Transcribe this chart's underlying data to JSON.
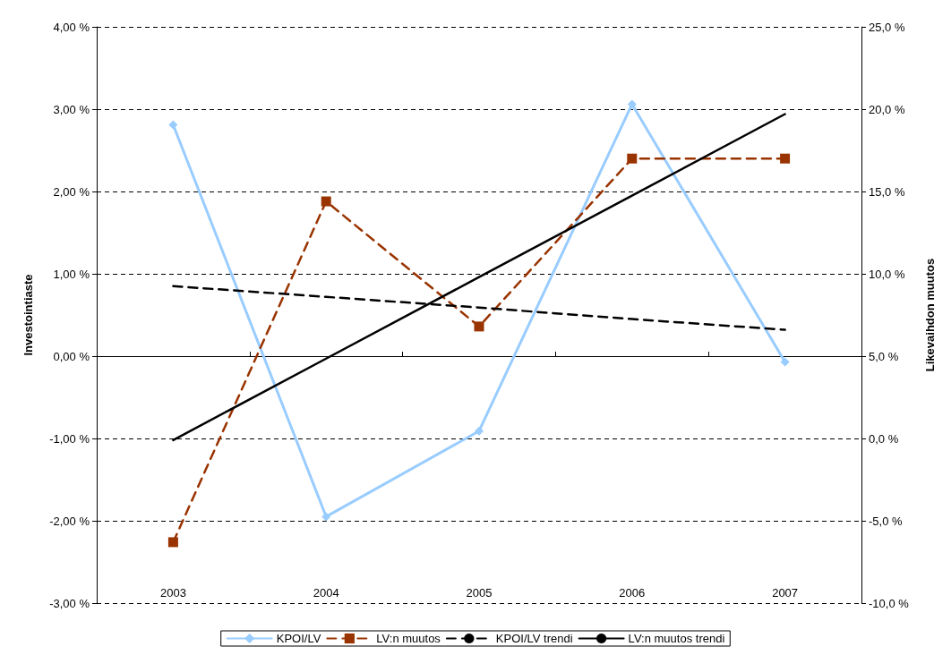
{
  "chart_data": {
    "type": "line",
    "ylabel": "Investointiaste",
    "y2label": "Likevaihdon muutos",
    "categories": [
      "2003",
      "2004",
      "2005",
      "2006",
      "2007"
    ],
    "series": [
      {
        "name": "KPOI/LV",
        "color": "#99ccff",
        "values": [
          2.81,
          -1.95,
          -0.91,
          3.06,
          -0.07
        ],
        "marker": "diamond",
        "line_style": "solid"
      },
      {
        "name": "LV:n muutos",
        "color": "#993300",
        "values": [
          -6.3,
          14.4,
          6.8,
          17.0,
          17.0
        ],
        "axis": "y2",
        "marker": "square",
        "line_style": "dashed"
      },
      {
        "name": "KPOI/LV trendi",
        "color": "#000000",
        "values": [
          0.85,
          0.72,
          0.59,
          0.45,
          0.32
        ],
        "marker": "none",
        "line_style": "dashed"
      },
      {
        "name": "LV:n muutos trendi",
        "color": "#000000",
        "values": [
          -0.1,
          4.85,
          9.8,
          14.75,
          19.7
        ],
        "axis": "y2",
        "marker": "none",
        "line_style": "solid"
      }
    ],
    "ylim": [
      -3,
      4
    ],
    "yticks": [
      {
        "value": -3,
        "label": "-3,00 %"
      },
      {
        "value": -2,
        "label": "-2,00 %"
      },
      {
        "value": -1,
        "label": "-1,00 %"
      },
      {
        "value": 0,
        "label": "0,00 %"
      },
      {
        "value": 1,
        "label": "1,00 %"
      },
      {
        "value": 2,
        "label": "2,00 %"
      },
      {
        "value": 3,
        "label": "3,00 %"
      },
      {
        "value": 4,
        "label": "4,00 %"
      }
    ],
    "y2lim": [
      -10,
      25
    ],
    "y2ticks": [
      {
        "value": -10,
        "label": "-10,0 %"
      },
      {
        "value": -5,
        "label": "-5,0 %"
      },
      {
        "value": 0,
        "label": "0,0 %"
      },
      {
        "value": 5,
        "label": "5,0 %"
      },
      {
        "value": 10,
        "label": "10,0 %"
      },
      {
        "value": 15,
        "label": "15,0 %"
      },
      {
        "value": 20,
        "label": "20,0 %"
      },
      {
        "value": 25,
        "label": "25,0 %"
      }
    ],
    "grid": "y",
    "legend": "bottom"
  }
}
